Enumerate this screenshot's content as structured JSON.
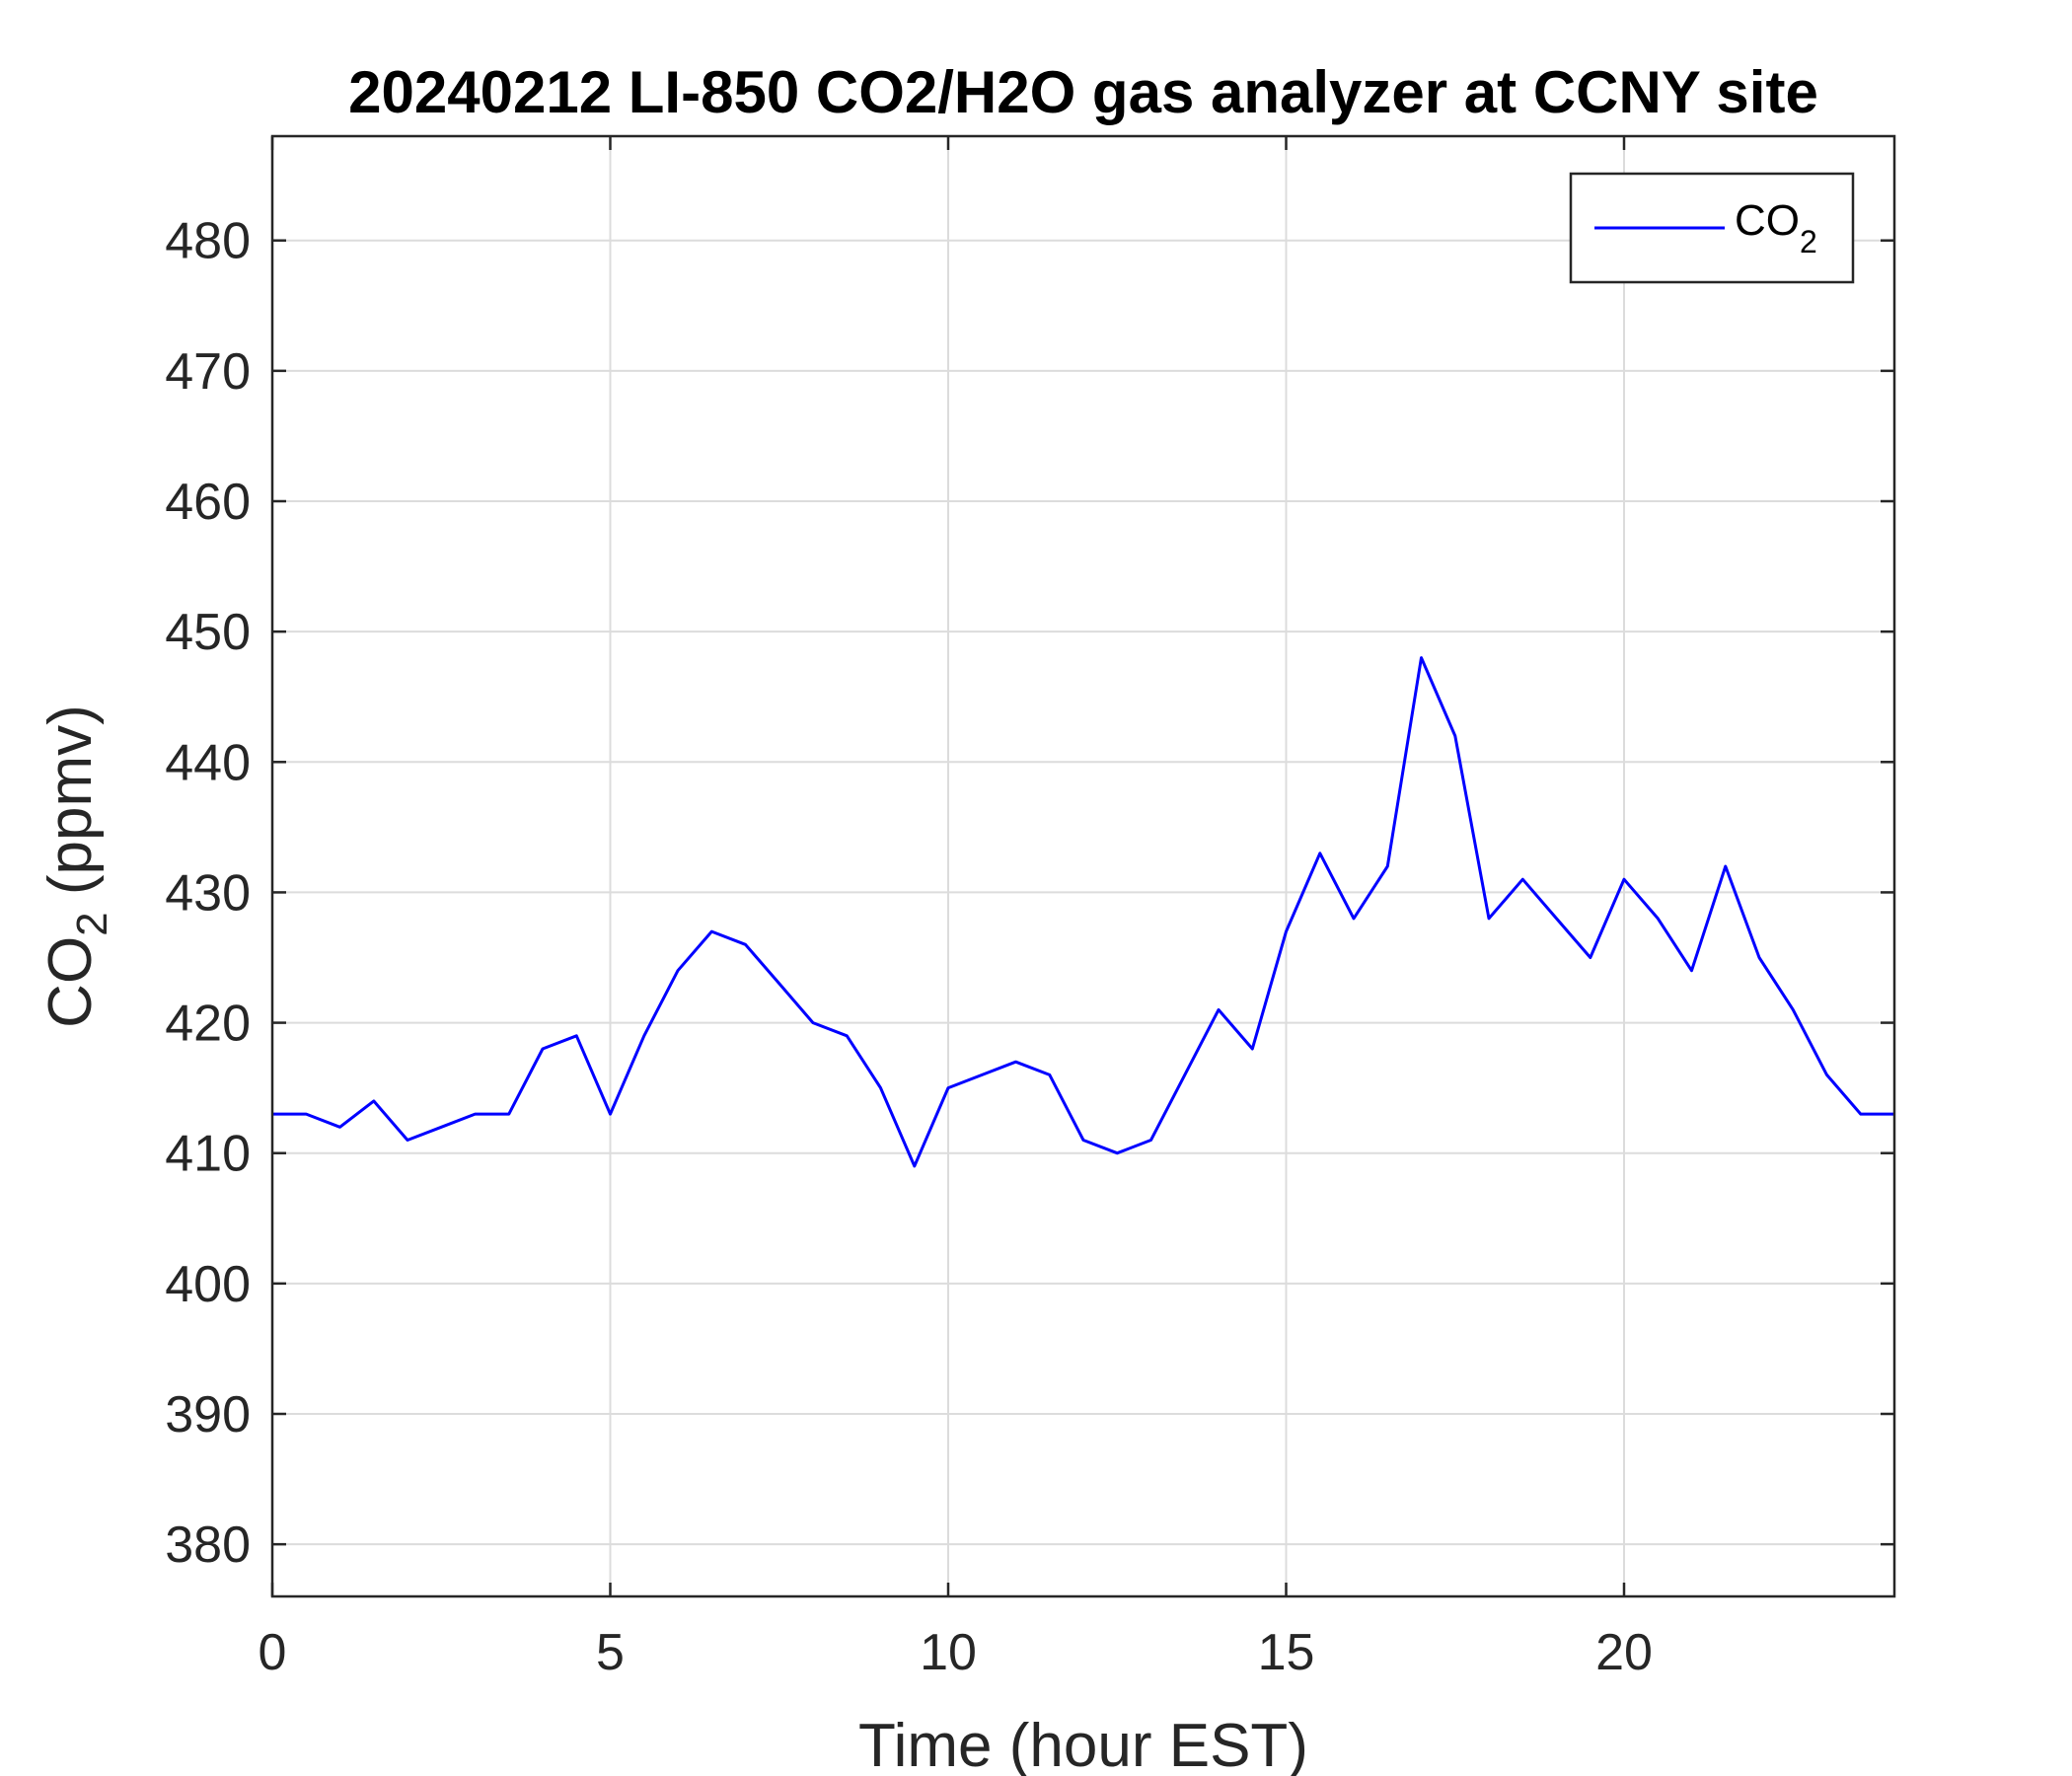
{
  "chart_data": {
    "type": "line",
    "title": "20240212 LI-850 CO2/H2O gas analyzer at CCNY site",
    "xlabel": "Time (hour EST)",
    "ylabel": {
      "base": "CO",
      "sub": "2",
      "rest": " (ppmv)"
    },
    "xlim": [
      0,
      24
    ],
    "ylim": [
      376,
      488
    ],
    "xticks": [
      0,
      5,
      10,
      15,
      20
    ],
    "yticks": [
      380,
      390,
      400,
      410,
      420,
      430,
      440,
      450,
      460,
      470,
      480
    ],
    "grid": true,
    "legend_position": "top-right",
    "series": [
      {
        "name": {
          "base": "CO",
          "sub": "2"
        },
        "color": "#0000ff",
        "x": [
          0,
          0.5,
          1,
          1.5,
          2,
          2.5,
          3,
          3.5,
          4,
          4.5,
          5,
          5.5,
          6,
          6.5,
          7,
          7.5,
          8,
          8.5,
          9,
          9.5,
          10,
          10.5,
          11,
          11.5,
          12,
          12.5,
          13,
          13.5,
          14,
          14.5,
          15,
          15.5,
          16,
          16.5,
          17,
          17.5,
          18,
          18.5,
          19,
          19.5,
          20,
          20.5,
          21,
          21.5,
          22,
          22.5,
          23,
          23.5,
          24
        ],
        "y": [
          413,
          413,
          412,
          414,
          411,
          412,
          413,
          413,
          418,
          419,
          413,
          419,
          424,
          427,
          426,
          423,
          420,
          419,
          415,
          409,
          415,
          416,
          417,
          416,
          411,
          410,
          411,
          416,
          421,
          418,
          427,
          433,
          428,
          432,
          448,
          442,
          428,
          431,
          428,
          425,
          431,
          428,
          424,
          432,
          425,
          421,
          416,
          413,
          413
        ]
      }
    ]
  }
}
